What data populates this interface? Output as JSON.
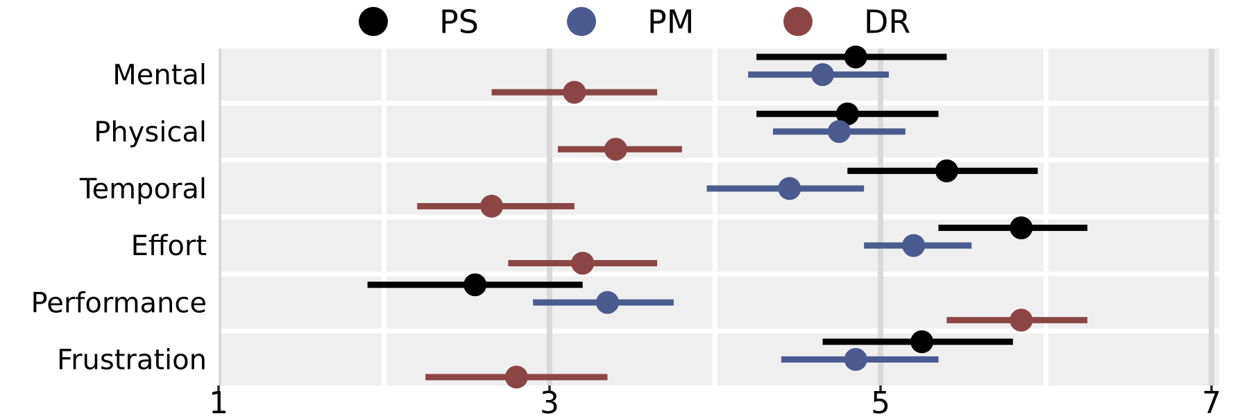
{
  "chart_data": {
    "type": "scatter",
    "subtype": "point-estimate-with-error-bars",
    "title": "",
    "xlabel": "",
    "ylabel": "",
    "categories": [
      "Mental",
      "Physical",
      "Temporal",
      "Effort",
      "Performance",
      "Frustration"
    ],
    "series": [
      {
        "name": "PS",
        "color": "#000000",
        "values": [
          4.85,
          4.8,
          5.4,
          5.85,
          2.55,
          5.25
        ],
        "ci_low": [
          4.25,
          4.25,
          4.8,
          5.35,
          1.9,
          4.65
        ],
        "ci_high": [
          5.4,
          5.35,
          5.95,
          6.25,
          3.2,
          5.8
        ]
      },
      {
        "name": "PM",
        "color": "#4b5b8f",
        "values": [
          4.65,
          4.75,
          4.45,
          5.2,
          3.35,
          4.85
        ],
        "ci_low": [
          4.2,
          4.35,
          3.95,
          4.9,
          2.9,
          4.4
        ],
        "ci_high": [
          5.05,
          5.15,
          4.9,
          5.55,
          3.75,
          5.35
        ]
      },
      {
        "name": "DR",
        "color": "#8b4545",
        "values": [
          3.15,
          3.4,
          2.65,
          3.2,
          5.85,
          2.8
        ],
        "ci_low": [
          2.65,
          3.05,
          2.2,
          2.75,
          5.4,
          2.25
        ],
        "ci_high": [
          3.65,
          3.8,
          3.15,
          3.65,
          6.25,
          3.35
        ]
      }
    ],
    "xlim": [
      1,
      7
    ],
    "x_ticks": [
      1,
      3,
      5,
      7
    ],
    "x_tick_labels": [
      "1",
      "3",
      "5",
      "7"
    ],
    "minor_grid_values": [
      2,
      4,
      6
    ],
    "legend": {
      "position": "top",
      "entries": [
        "PS",
        "PM",
        "DR"
      ]
    },
    "style": {
      "band_color": "#efefef",
      "major_grid_color": "#d9d9d9",
      "minor_grid_color": "#ffffff",
      "tick_color": "#262626",
      "text_color": "#000000"
    }
  }
}
